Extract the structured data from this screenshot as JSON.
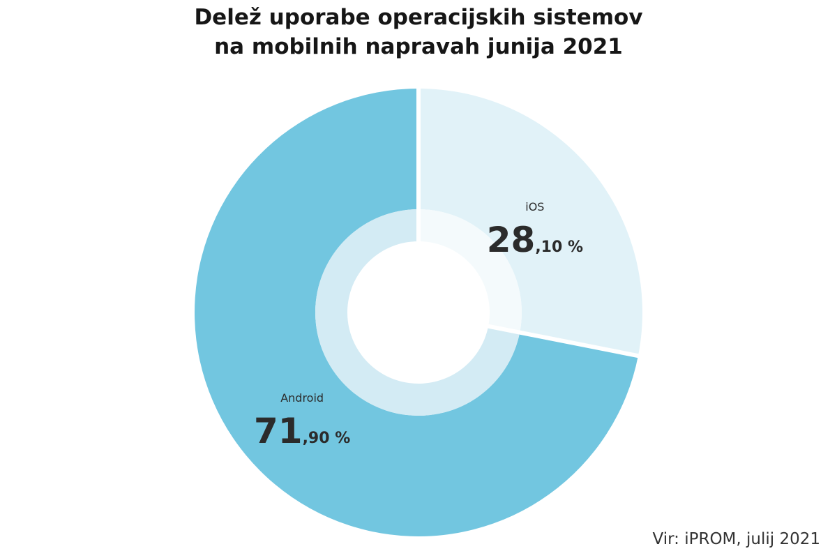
{
  "title": {
    "line1": "Delež uporabe operacijskih sistemov",
    "line2": "na mobilnih napravah junija 2021"
  },
  "source": "Vir: iPROM, julij 2021",
  "chart_data": {
    "type": "pie",
    "title": "Delež uporabe operacijskih sistemov na mobilnih napravah junija 2021",
    "slices": [
      {
        "label": "iOS",
        "value": 28.1,
        "display_int": "28",
        "display_dec": ",10 %",
        "color": "#e1f2f8",
        "inner_color": "#f4fafc"
      },
      {
        "label": "Android",
        "value": 71.9,
        "display_int": "71",
        "display_dec": ",90 %",
        "color": "#72c6e0",
        "inner_color": "#d3ebf4"
      }
    ],
    "legend": "none"
  }
}
